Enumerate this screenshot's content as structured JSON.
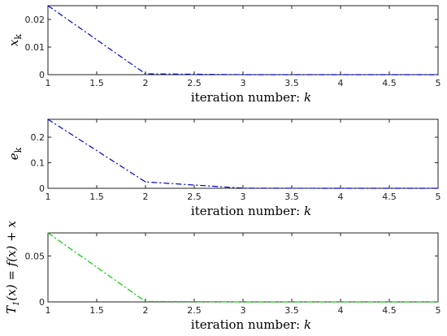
{
  "chart_data": [
    {
      "type": "line",
      "xlabel": "iteration number: k",
      "ylabel": "x_k",
      "xlim": [
        1,
        5
      ],
      "ylim": [
        0,
        0.025
      ],
      "xticks": [
        "1",
        "1.5",
        "2",
        "2.5",
        "3",
        "3.5",
        "4",
        "4.5",
        "5"
      ],
      "yticks": [
        "0",
        "0.01",
        "0.02"
      ],
      "grid": false,
      "series": [
        {
          "x": [
            1,
            2,
            3,
            4,
            5
          ],
          "y": [
            0.025,
            0.0003,
            0,
            0,
            0
          ],
          "color": "#0000cc",
          "dash": "dashdot"
        }
      ]
    },
    {
      "type": "line",
      "xlabel": "iteration number: k",
      "ylabel": "e_k",
      "xlim": [
        1,
        5
      ],
      "ylim": [
        0,
        0.27
      ],
      "xticks": [
        "1",
        "1.5",
        "2",
        "2.5",
        "3",
        "3.5",
        "4",
        "4.5",
        "5"
      ],
      "yticks": [
        "0",
        "0.1",
        "0.2"
      ],
      "grid": false,
      "series": [
        {
          "x": [
            1,
            2,
            3,
            4,
            5
          ],
          "y": [
            0.27,
            0.025,
            0.0005,
            0,
            0
          ],
          "color": "#0000cc",
          "dash": "dashdot"
        }
      ]
    },
    {
      "type": "line",
      "xlabel": "iteration number: k",
      "ylabel": "T_1(x) = f(x) + x",
      "xlim": [
        1,
        5
      ],
      "ylim": [
        0,
        0.075
      ],
      "xticks": [
        "1",
        "1.5",
        "2",
        "2.5",
        "3",
        "3.5",
        "4",
        "4.5",
        "5"
      ],
      "yticks": [
        "0",
        "0.05"
      ],
      "grid": false,
      "series": [
        {
          "x": [
            1,
            2,
            3,
            4,
            5
          ],
          "y": [
            0.075,
            0.0005,
            0,
            0,
            0
          ],
          "color": "#00cc00",
          "dash": "dashdot"
        }
      ]
    }
  ]
}
